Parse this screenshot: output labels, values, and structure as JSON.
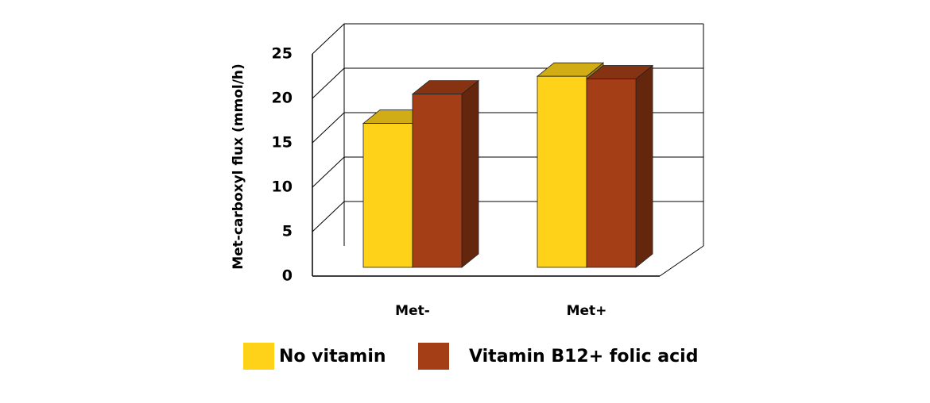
{
  "chart_data": {
    "type": "bar3d",
    "y_label": "Met-carboxyl flux (mmol/h)",
    "categories": [
      "Met-",
      "Met+"
    ],
    "series": [
      {
        "name": "No vitamin",
        "color": "#FFD21A",
        "values": [
          16.2,
          21.5
        ]
      },
      {
        "name": "Vitamin B12+ folic acid",
        "color": "#A33E17",
        "values": [
          19.5,
          21.2
        ]
      }
    ],
    "ylim": [
      0,
      25
    ],
    "yticks": [
      0,
      5,
      10,
      15,
      20,
      25
    ],
    "grid": true
  }
}
